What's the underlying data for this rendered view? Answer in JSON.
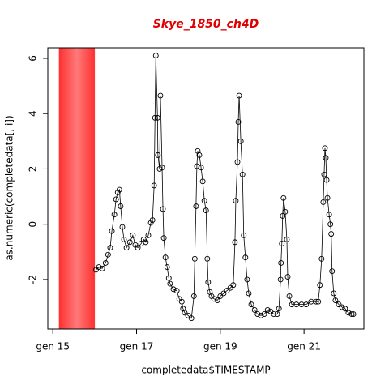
{
  "chart_data": {
    "type": "line",
    "title": "Skye_1850_ch4D",
    "x_label": "completedata$TIMESTAMP",
    "y_label": "as.numeric(completedata[, i])",
    "xlim": [
      14.88,
      22.43
    ],
    "ylim": [
      -3.79,
      6.38
    ],
    "xticks": [
      {
        "value": 15,
        "label": "gen 15"
      },
      {
        "value": 17,
        "label": "gen 17"
      },
      {
        "value": 19,
        "label": "gen 19"
      },
      {
        "value": 21,
        "label": "gen 21"
      }
    ],
    "yticks": [
      -2,
      0,
      2,
      4,
      6
    ],
    "highlight_range": {
      "xlim": [
        15.15,
        16.0
      ],
      "color": "#ff3a3a"
    },
    "series": [
      {
        "name": "Skye_1850_ch4D",
        "color": "#000000",
        "x": [
          16.03,
          16.1,
          16.18,
          16.26,
          16.32,
          16.37,
          16.41,
          16.47,
          16.51,
          16.55,
          16.59,
          16.62,
          16.66,
          16.7,
          16.76,
          16.84,
          16.91,
          16.97,
          17.03,
          17.11,
          17.17,
          17.22,
          17.28,
          17.34,
          17.38,
          17.42,
          17.44,
          17.46,
          17.5,
          17.51,
          17.55,
          17.57,
          17.61,
          17.63,
          17.65,
          17.69,
          17.73,
          17.77,
          17.8,
          17.88,
          17.96,
          18.02,
          18.08,
          18.11,
          18.15,
          18.23,
          18.31,
          18.37,
          18.39,
          18.42,
          18.44,
          18.46,
          18.5,
          18.54,
          18.58,
          18.62,
          18.66,
          18.69,
          18.71,
          18.75,
          18.79,
          18.85,
          18.93,
          19.0,
          19.08,
          19.16,
          19.24,
          19.31,
          19.35,
          19.37,
          19.41,
          19.43,
          19.45,
          19.49,
          19.53,
          19.56,
          19.6,
          19.64,
          19.68,
          19.74,
          19.82,
          19.89,
          19.97,
          20.05,
          20.13,
          20.2,
          20.28,
          20.36,
          20.4,
          20.44,
          20.45,
          20.47,
          20.49,
          20.51,
          20.55,
          20.59,
          20.61,
          20.65,
          20.71,
          20.82,
          20.94,
          21.05,
          21.17,
          21.29,
          21.34,
          21.38,
          21.42,
          21.46,
          21.48,
          21.5,
          21.52,
          21.54,
          21.56,
          21.6,
          21.63,
          21.65,
          21.67,
          21.71,
          21.75,
          21.83,
          21.91,
          21.98,
          22.06,
          22.14,
          22.18
        ],
        "values": [
          -1.65,
          -1.55,
          -1.6,
          -1.4,
          -1.1,
          -0.85,
          -0.25,
          0.35,
          0.9,
          1.15,
          1.25,
          0.65,
          -0.1,
          -0.55,
          -0.85,
          -0.65,
          -0.4,
          -0.75,
          -0.85,
          -0.7,
          -0.55,
          -0.65,
          -0.4,
          0.05,
          0.15,
          1.4,
          3.85,
          6.1,
          3.85,
          2.5,
          2.0,
          4.65,
          2.05,
          0.55,
          -0.5,
          -1.2,
          -1.55,
          -1.95,
          -2.15,
          -2.35,
          -2.4,
          -2.7,
          -2.8,
          -3.05,
          -3.2,
          -3.3,
          -3.4,
          -2.6,
          -1.25,
          0.65,
          2.1,
          2.65,
          2.5,
          2.05,
          1.55,
          0.85,
          0.5,
          -1.25,
          -2.1,
          -2.45,
          -2.6,
          -2.7,
          -2.75,
          -2.6,
          -2.5,
          -2.4,
          -2.3,
          -2.2,
          -0.65,
          0.85,
          2.25,
          3.7,
          4.65,
          3.0,
          1.8,
          -0.4,
          -1.2,
          -2.0,
          -2.5,
          -2.9,
          -3.1,
          -3.25,
          -3.3,
          -3.25,
          -3.1,
          -3.15,
          -3.25,
          -3.25,
          -3.05,
          -2.0,
          -1.4,
          -0.7,
          0.3,
          0.95,
          0.45,
          -0.55,
          -1.9,
          -2.6,
          -2.9,
          -2.9,
          -2.9,
          -2.9,
          -2.8,
          -2.8,
          -2.8,
          -2.2,
          -1.25,
          0.8,
          1.8,
          2.75,
          2.4,
          1.6,
          0.95,
          0.35,
          0.0,
          -0.35,
          -1.7,
          -2.5,
          -2.75,
          -2.9,
          -3.0,
          -3.05,
          -3.2,
          -3.25,
          -3.25
        ]
      }
    ]
  }
}
